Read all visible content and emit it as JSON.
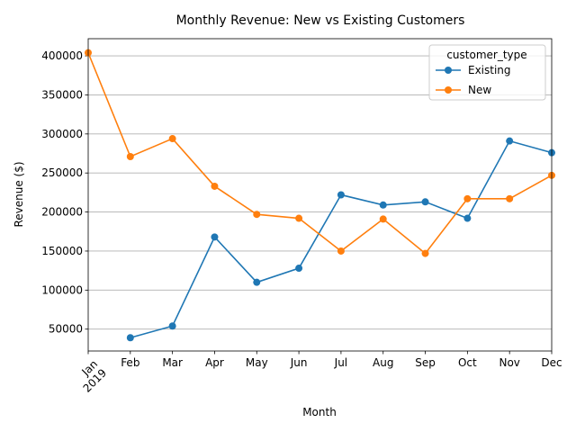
{
  "chart_data": {
    "type": "line",
    "title": "Monthly Revenue: New vs Existing Customers",
    "xlabel": "Month",
    "ylabel": "Revenue ($)",
    "categories": [
      "Jan\n2019",
      "Feb",
      "Mar",
      "Apr",
      "May",
      "Jun",
      "Jul",
      "Aug",
      "Sep",
      "Oct",
      "Nov",
      "Dec"
    ],
    "yticks": [
      50000,
      100000,
      150000,
      200000,
      250000,
      300000,
      350000,
      400000
    ],
    "ylim": [
      22000,
      422000
    ],
    "grid": "horizontal",
    "legend": {
      "title": "customer_type",
      "placement": "top-right"
    },
    "series": [
      {
        "name": "Existing",
        "color": "#1f77b4",
        "values": [
          null,
          39000,
          54000,
          168000,
          110000,
          128000,
          222000,
          209000,
          213000,
          192000,
          291000,
          276000
        ]
      },
      {
        "name": "New",
        "color": "#ff7f0e",
        "values": [
          404000,
          271000,
          294000,
          233000,
          197000,
          192000,
          150000,
          191000,
          147000,
          217000,
          217000,
          247000
        ]
      }
    ]
  }
}
